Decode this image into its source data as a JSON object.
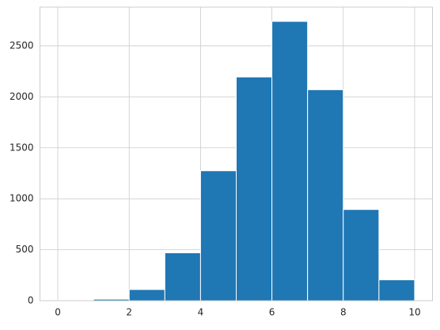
{
  "chart_data": {
    "type": "histogram",
    "bins": [
      0,
      1,
      2,
      3,
      4,
      5,
      6,
      7,
      8,
      9,
      10
    ],
    "values": [
      3,
      15,
      110,
      470,
      1275,
      2195,
      2740,
      2070,
      895,
      205
    ],
    "color": "#1f77b4",
    "xlim": [
      -0.5,
      10.5
    ],
    "xticks": [
      0,
      2,
      4,
      6,
      8,
      10
    ],
    "ylim": [
      0,
      2880
    ],
    "yticks": [
      0,
      500,
      1000,
      1500,
      2000,
      2500
    ],
    "grid": true
  }
}
